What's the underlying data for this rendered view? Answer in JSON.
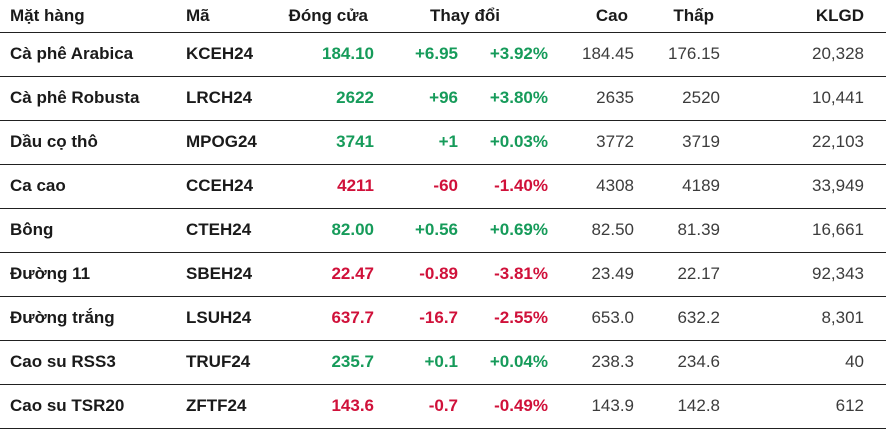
{
  "table": {
    "headers": {
      "name": "Mặt hàng",
      "code": "Mã",
      "close": "Đóng cửa",
      "change": "Thay đổi",
      "high": "Cao",
      "low": "Thấp",
      "klgd": "KLGD"
    },
    "rows": [
      {
        "name": "Cà phê Arabica",
        "code": "KCEH24",
        "close": "184.10",
        "change": "+6.95",
        "pct": "+3.92%",
        "high": "184.45",
        "low": "176.15",
        "klgd": "20,328",
        "direction": "up"
      },
      {
        "name": "Cà phê Robusta",
        "code": "LRCH24",
        "close": "2622",
        "change": "+96",
        "pct": "+3.80%",
        "high": "2635",
        "low": "2520",
        "klgd": "10,441",
        "direction": "up"
      },
      {
        "name": "Dầu cọ thô",
        "code": "MPOG24",
        "close": "3741",
        "change": "+1",
        "pct": "+0.03%",
        "high": "3772",
        "low": "3719",
        "klgd": "22,103",
        "direction": "up"
      },
      {
        "name": "Ca cao",
        "code": "CCEH24",
        "close": "4211",
        "change": "-60",
        "pct": "-1.40%",
        "high": "4308",
        "low": "4189",
        "klgd": "33,949",
        "direction": "down"
      },
      {
        "name": "Bông",
        "code": "CTEH24",
        "close": "82.00",
        "change": "+0.56",
        "pct": "+0.69%",
        "high": "82.50",
        "low": "81.39",
        "klgd": "16,661",
        "direction": "up"
      },
      {
        "name": "Đường 11",
        "code": "SBEH24",
        "close": "22.47",
        "change": "-0.89",
        "pct": "-3.81%",
        "high": "23.49",
        "low": "22.17",
        "klgd": "92,343",
        "direction": "down"
      },
      {
        "name": "Đường trắng",
        "code": "LSUH24",
        "close": "637.7",
        "change": "-16.7",
        "pct": "-2.55%",
        "high": "653.0",
        "low": "632.2",
        "klgd": "8,301",
        "direction": "down"
      },
      {
        "name": "Cao su RSS3",
        "code": "TRUF24",
        "close": "235.7",
        "change": "+0.1",
        "pct": "+0.04%",
        "high": "238.3",
        "low": "234.6",
        "klgd": "40",
        "direction": "up"
      },
      {
        "name": "Cao su TSR20",
        "code": "ZFTF24",
        "close": "143.6",
        "change": "-0.7",
        "pct": "-0.49%",
        "high": "143.9",
        "low": "142.8",
        "klgd": "612",
        "direction": "down"
      }
    ]
  },
  "colors": {
    "up": "#169b5a",
    "down": "#d0113a"
  }
}
